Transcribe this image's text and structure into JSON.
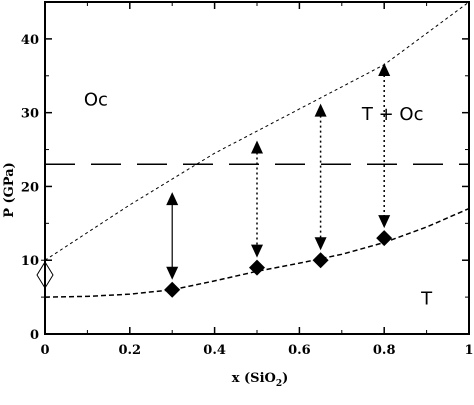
{
  "chart_data": {
    "type": "scatter",
    "xlabel": "x (SiO",
    "xlabel_sub": "2",
    "xlabel_close": ")",
    "ylabel": "P (GPa)",
    "xlim": [
      0,
      1
    ],
    "ylim": [
      0,
      45
    ],
    "x_ticks": [
      0,
      0.2,
      0.4,
      0.6,
      0.8,
      1
    ],
    "x_tick_labels": [
      "0",
      "0.2",
      "0.4",
      "0.6",
      "0.8",
      "1"
    ],
    "y_ticks": [
      0,
      10,
      20,
      30,
      40
    ],
    "y_tick_labels": [
      "0",
      "10",
      "20",
      "30",
      "40"
    ],
    "grid": false,
    "region_labels": [
      {
        "text": "Oc",
        "x": 0.12,
        "y": 31
      },
      {
        "text": "T + Oc",
        "x": 0.82,
        "y": 29
      },
      {
        "text": "T",
        "x": 0.9,
        "y": 4
      }
    ],
    "points": {
      "x": [
        0.3,
        0.5,
        0.65,
        0.8
      ],
      "y": [
        6,
        9,
        10,
        13
      ],
      "marker": "filled-diamond"
    },
    "open_marker": {
      "x": 0,
      "y": 8,
      "marker": "open-diamond",
      "error_low": 5,
      "error_high": 10
    },
    "arrows": [
      {
        "x": 0.3,
        "y_from": 19.5,
        "y_to": 6,
        "style": "solid"
      },
      {
        "x": 0.5,
        "y_from": 26.5,
        "y_to": 9,
        "style": "dotted"
      },
      {
        "x": 0.65,
        "y_from": 31.5,
        "y_to": 10,
        "style": "dotted"
      },
      {
        "x": 0.8,
        "y_from": 37,
        "y_to": 13,
        "style": "dotted"
      }
    ],
    "lines": [
      {
        "name": "upper boundary",
        "style": "dotted",
        "x": [
          0,
          0.2,
          0.4,
          0.6,
          0.8,
          1.0
        ],
        "y": [
          10,
          17.5,
          24.5,
          30.5,
          36.5,
          45
        ]
      },
      {
        "name": "lower boundary",
        "style": "dashed",
        "x": [
          0,
          0.1,
          0.2,
          0.3,
          0.4,
          0.5,
          0.6,
          0.7,
          0.8,
          0.9,
          1.0
        ],
        "y": [
          5,
          5.1,
          5.4,
          6,
          7.2,
          8.5,
          9.6,
          10.8,
          12.4,
          14.5,
          17
        ]
      },
      {
        "name": "horizontal line",
        "style": "long-dash",
        "x": [
          0,
          1
        ],
        "y": [
          23,
          23
        ]
      }
    ],
    "colors": {
      "ink": "#000000",
      "background": "#ffffff"
    }
  }
}
